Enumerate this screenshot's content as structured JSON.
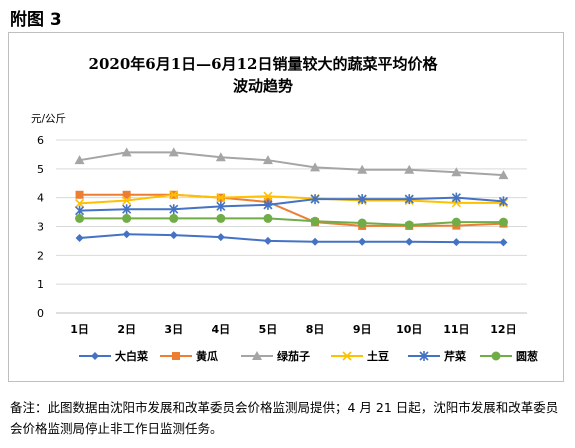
{
  "figure_label": "附图 3",
  "note": "备注：此图数据由沈阳市发展和改革委员会价格监测局提供；4 月 21 日起，沈阳市发展和改革委员会价格监测局停止非工作日监测任务。",
  "chart_data": {
    "type": "line",
    "title": "2020年6月1日—6月12日销量较大的蔬菜平均价格",
    "subtitle": "波动趋势",
    "ylabel": "元/公斤",
    "xlabel": "",
    "ylim": [
      0,
      6
    ],
    "yticks": [
      0,
      1,
      2,
      3,
      4,
      5,
      6
    ],
    "grid": true,
    "legend_position": "bottom",
    "categories": [
      "1日",
      "2日",
      "3日",
      "4日",
      "5日",
      "8日",
      "9日",
      "10日",
      "11日",
      "12日"
    ],
    "series": [
      {
        "name": "大白菜",
        "color": "#4472C4",
        "marker": "diamond",
        "values": [
          2.6,
          2.73,
          2.7,
          2.63,
          2.5,
          2.47,
          2.47,
          2.47,
          2.46,
          2.45
        ]
      },
      {
        "name": "黄瓜",
        "color": "#ED7D31",
        "marker": "square",
        "values": [
          4.1,
          4.1,
          4.1,
          4.0,
          3.85,
          3.15,
          3.02,
          3.02,
          3.03,
          3.1
        ]
      },
      {
        "name": "绿茄子",
        "color": "#A5A5A5",
        "marker": "triangle",
        "values": [
          5.3,
          5.57,
          5.57,
          5.4,
          5.3,
          5.05,
          4.97,
          4.97,
          4.88,
          4.78
        ]
      },
      {
        "name": "土豆",
        "color": "#FFC000",
        "marker": "x",
        "values": [
          3.8,
          3.9,
          4.1,
          4.0,
          4.05,
          3.97,
          3.9,
          3.9,
          3.82,
          3.82
        ]
      },
      {
        "name": "芹菜",
        "color": "#4472C4",
        "marker": "asterisk",
        "values": [
          3.55,
          3.6,
          3.6,
          3.7,
          3.75,
          3.95,
          3.95,
          3.95,
          4.0,
          3.87
        ]
      },
      {
        "name": "圆葱",
        "color": "#70AD47",
        "marker": "circle",
        "values": [
          3.28,
          3.28,
          3.28,
          3.28,
          3.28,
          3.18,
          3.12,
          3.05,
          3.15,
          3.15
        ]
      }
    ]
  }
}
